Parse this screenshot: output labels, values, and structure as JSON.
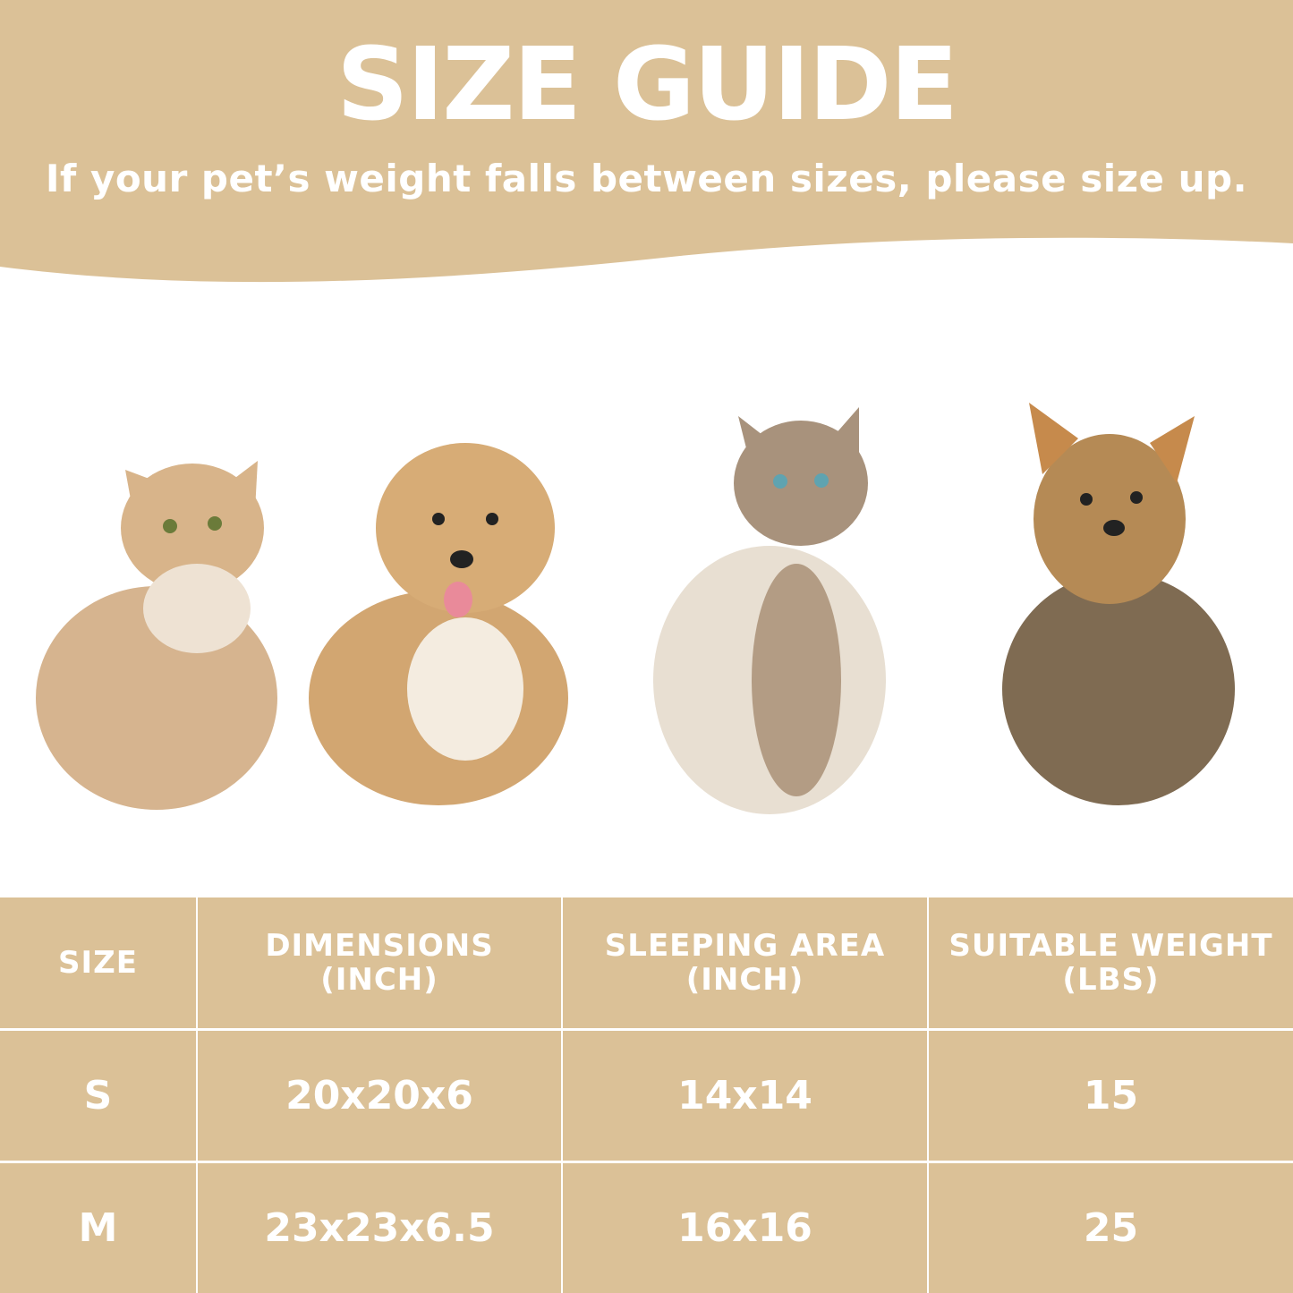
{
  "header": {
    "title": "SIZE GUIDE",
    "subtitle": "If your pet’s weight falls between sizes, please size up."
  },
  "colors": {
    "accent": "#dbc197",
    "text": "#ffffff",
    "background": "#ffffff"
  },
  "pets": [
    "golden-cat-photo",
    "fluffy-puppy-photo",
    "ragdoll-cat-photo",
    "yorkshire-terrier-photo"
  ],
  "table": {
    "headers": [
      {
        "line1": "SIZE",
        "line2": ""
      },
      {
        "line1": "DIMENSIONS",
        "line2": "(INCH)"
      },
      {
        "line1": "SLEEPING AREA",
        "line2": "(INCH)"
      },
      {
        "line1": "SUITABLE WEIGHT",
        "line2": "(LBS)"
      }
    ],
    "rows": [
      [
        "S",
        "20x20x6",
        "14x14",
        "15"
      ],
      [
        "M",
        "23x23x6.5",
        "16x16",
        "25"
      ]
    ]
  }
}
